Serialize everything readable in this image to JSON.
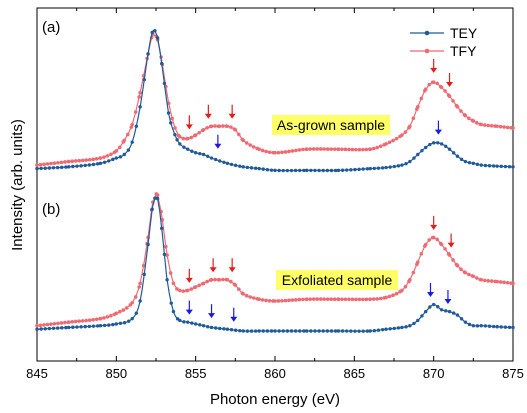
{
  "chart_data": {
    "type": "line",
    "xlabel": "Photon energy (eV)",
    "ylabel": "Intensity (arb. units)",
    "xlim": [
      845,
      875
    ],
    "x_ticks": [
      "845",
      "850",
      "855",
      "860",
      "865",
      "870",
      "875"
    ],
    "x_tick_values": [
      845,
      850,
      855,
      860,
      865,
      870,
      875
    ],
    "ylim": [
      0,
      1
    ],
    "y_ticks_labeled": false,
    "grid": false,
    "legend": {
      "placement": "top-right",
      "entries": [
        "TEY",
        "TFY"
      ]
    },
    "colors": {
      "TEY": "#1f5a99",
      "TFY": "#ee6b73",
      "tey_arrow": "#1a1ae6",
      "tfy_arrow": "#e01e1e",
      "label_bg": "#ffff66"
    },
    "panels": [
      {
        "label": "(a)",
        "annotation": "As-grown sample",
        "series": [
          {
            "name": "TEY",
            "x": [
              845,
              847,
              849,
              850,
              850.5,
              851,
              851.5,
              852,
              852.3,
              852.6,
              852.9,
              853.3,
              853.7,
              854,
              854.5,
              855,
              855.5,
              856,
              857,
              858,
              859,
              860,
              862,
              864,
              866,
              867,
              868,
              868.5,
              869,
              869.5,
              870,
              870.5,
              871,
              871.5,
              872,
              872.5,
              873,
              874,
              875
            ],
            "y": [
              0.545,
              0.55,
              0.56,
              0.575,
              0.585,
              0.62,
              0.72,
              0.87,
              0.935,
              0.915,
              0.83,
              0.7,
              0.64,
              0.615,
              0.6,
              0.59,
              0.585,
              0.575,
              0.56,
              0.55,
              0.545,
              0.54,
              0.54,
              0.54,
              0.545,
              0.548,
              0.555,
              0.565,
              0.585,
              0.605,
              0.618,
              0.615,
              0.6,
              0.58,
              0.565,
              0.56,
              0.555,
              0.552,
              0.55
            ]
          },
          {
            "name": "TFY",
            "x": [
              845,
              847,
              849,
              850,
              850.5,
              851,
              851.5,
              852,
              852.3,
              852.6,
              852.9,
              853.3,
              853.7,
              854,
              854.5,
              855,
              855.5,
              856,
              856.5,
              857,
              857.5,
              858,
              859,
              860,
              862,
              864,
              866,
              867,
              868,
              868.5,
              869,
              869.5,
              870,
              870.5,
              871,
              871.5,
              872,
              872.5,
              873,
              874,
              875
            ],
            "y": [
              0.555,
              0.565,
              0.575,
              0.595,
              0.625,
              0.67,
              0.76,
              0.87,
              0.925,
              0.91,
              0.84,
              0.73,
              0.66,
              0.635,
              0.63,
              0.64,
              0.655,
              0.665,
              0.665,
              0.665,
              0.655,
              0.625,
              0.6,
              0.59,
              0.6,
              0.6,
              0.6,
              0.615,
              0.64,
              0.665,
              0.72,
              0.77,
              0.79,
              0.775,
              0.75,
              0.72,
              0.695,
              0.68,
              0.67,
              0.665,
              0.66
            ]
          }
        ],
        "arrows": [
          {
            "series": "TFY",
            "x": 854.6,
            "y": 0.645
          },
          {
            "series": "TFY",
            "x": 855.8,
            "y": 0.675
          },
          {
            "series": "TFY",
            "x": 857.3,
            "y": 0.675
          },
          {
            "series": "TFY",
            "x": 870.0,
            "y": 0.805
          },
          {
            "series": "TFY",
            "x": 871.0,
            "y": 0.765
          },
          {
            "series": "TEY",
            "x": 856.4,
            "y": 0.59
          },
          {
            "series": "TEY",
            "x": 870.3,
            "y": 0.63
          }
        ]
      },
      {
        "label": "(b)",
        "annotation": "Exfoliated sample",
        "series": [
          {
            "name": "TEY",
            "x": [
              845,
              847,
              849,
              850,
              851,
              851.5,
              852,
              852.3,
              852.6,
              852.9,
              853.2,
              853.6,
              854,
              854.5,
              855,
              855.5,
              856,
              857,
              858,
              859,
              860,
              862,
              864,
              866,
              867,
              868,
              868.5,
              869,
              869.5,
              870,
              870.5,
              871,
              871.5,
              872,
              872.5,
              873,
              874,
              875
            ],
            "y": [
              0.09,
              0.095,
              0.1,
              0.105,
              0.12,
              0.17,
              0.33,
              0.44,
              0.46,
              0.36,
              0.23,
              0.14,
              0.115,
              0.11,
              0.105,
              0.1,
              0.095,
              0.09,
              0.085,
              0.085,
              0.085,
              0.085,
              0.085,
              0.085,
              0.09,
              0.095,
              0.1,
              0.115,
              0.14,
              0.16,
              0.145,
              0.14,
              0.13,
              0.11,
              0.1,
              0.1,
              0.097,
              0.095
            ]
          },
          {
            "name": "TFY",
            "x": [
              845,
              847,
              849,
              850,
              851,
              851.5,
              852,
              852.3,
              852.6,
              852.9,
              853.2,
              853.6,
              854,
              854.5,
              855,
              855.5,
              856,
              856.5,
              857,
              857.5,
              858,
              859,
              860,
              862,
              864,
              866,
              867,
              868,
              868.5,
              869,
              869.5,
              870,
              870.5,
              871,
              871.5,
              872,
              872.5,
              873,
              874,
              875
            ],
            "y": [
              0.1,
              0.11,
              0.12,
              0.135,
              0.165,
              0.22,
              0.35,
              0.45,
              0.47,
              0.4,
              0.3,
              0.22,
              0.2,
              0.2,
              0.21,
              0.22,
              0.23,
              0.23,
              0.23,
              0.215,
              0.19,
              0.175,
              0.17,
              0.175,
              0.175,
              0.175,
              0.18,
              0.2,
              0.23,
              0.28,
              0.33,
              0.35,
              0.33,
              0.3,
              0.27,
              0.25,
              0.24,
              0.23,
              0.225,
              0.22
            ]
          }
        ],
        "arrows": [
          {
            "series": "TFY",
            "x": 854.6,
            "y": 0.21
          },
          {
            "series": "TFY",
            "x": 856.1,
            "y": 0.24
          },
          {
            "series": "TFY",
            "x": 857.3,
            "y": 0.24
          },
          {
            "series": "TFY",
            "x": 870.0,
            "y": 0.36
          },
          {
            "series": "TFY",
            "x": 871.1,
            "y": 0.31
          },
          {
            "series": "TEY",
            "x": 854.6,
            "y": 0.12
          },
          {
            "series": "TEY",
            "x": 856.0,
            "y": 0.11
          },
          {
            "series": "TEY",
            "x": 857.4,
            "y": 0.1
          },
          {
            "series": "TEY",
            "x": 869.8,
            "y": 0.17
          },
          {
            "series": "TEY",
            "x": 870.9,
            "y": 0.15
          }
        ]
      }
    ]
  }
}
